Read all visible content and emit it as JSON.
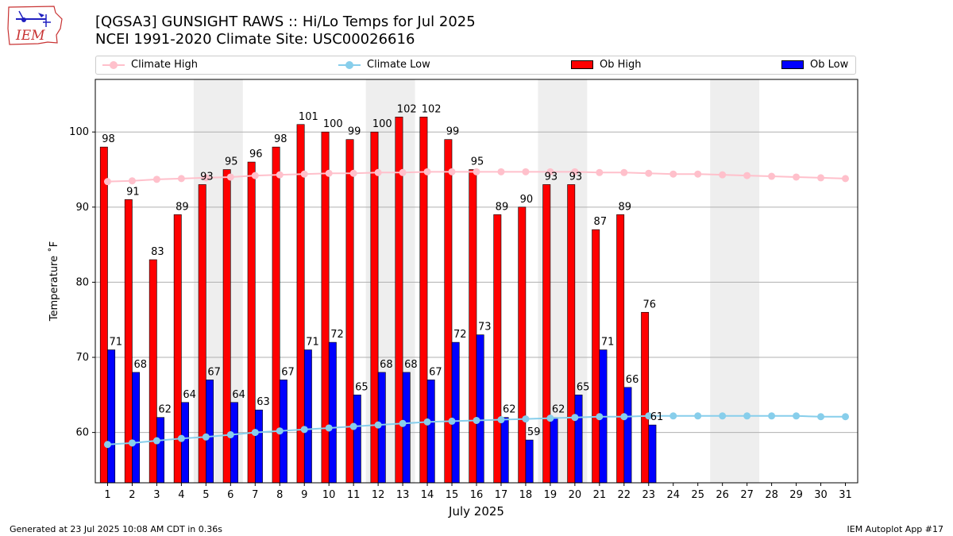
{
  "header": {
    "logo_text": "IEM",
    "title_line1": "[QGSA3] GUNSIGHT RAWS :: Hi/Lo Temps for Jul 2025",
    "title_line2": "NCEI 1991-2020 Climate Site: USC00026616"
  },
  "legend": {
    "items": [
      "Climate High",
      "Climate Low",
      "Ob High",
      "Ob Low"
    ]
  },
  "footer": {
    "left": "Generated at 23 Jul 2025 10:08 AM CDT in 0.36s",
    "right": "IEM Autoplot App #17"
  },
  "colors": {
    "ob_high": "#ff0000",
    "ob_low": "#0000ff",
    "climate_high": "#ffc0cb",
    "climate_low": "#87ceeb",
    "weekend_shade": "#eeeeee",
    "grid": "#b0b0b0"
  },
  "chart_data": {
    "type": "bar",
    "xlabel": "July 2025",
    "ylabel": "Temperature ˚F",
    "ylim": [
      53.3,
      107
    ],
    "yticks": [
      60,
      70,
      80,
      90,
      100
    ],
    "grid": "horizontal",
    "legend_position": "top",
    "categories": [
      "1",
      "2",
      "3",
      "4",
      "5",
      "6",
      "7",
      "8",
      "9",
      "10",
      "11",
      "12",
      "13",
      "14",
      "15",
      "16",
      "17",
      "18",
      "19",
      "20",
      "21",
      "22",
      "23",
      "24",
      "25",
      "26",
      "27",
      "28",
      "29",
      "30",
      "31"
    ],
    "shaded_days": [
      [
        5,
        6
      ],
      [
        12,
        13
      ],
      [
        19,
        20
      ],
      [
        26,
        27
      ]
    ],
    "series": [
      {
        "name": "Ob High",
        "kind": "bar",
        "values": [
          98,
          91,
          83,
          89,
          93,
          95,
          96,
          98,
          101,
          100,
          99,
          100,
          102,
          102,
          99,
          95,
          89,
          90,
          93,
          93,
          87,
          89,
          76,
          null,
          null,
          null,
          null,
          null,
          null,
          null,
          null
        ]
      },
      {
        "name": "Ob Low",
        "kind": "bar",
        "values": [
          71,
          68,
          62,
          64,
          67,
          64,
          63,
          67,
          71,
          72,
          65,
          68,
          68,
          67,
          72,
          73,
          62,
          59,
          62,
          65,
          71,
          66,
          61,
          null,
          null,
          null,
          null,
          null,
          null,
          null,
          null
        ]
      },
      {
        "name": "Climate High",
        "kind": "line",
        "values": [
          93.4,
          93.5,
          93.7,
          93.8,
          93.9,
          94.0,
          94.2,
          94.3,
          94.4,
          94.5,
          94.5,
          94.6,
          94.6,
          94.7,
          94.7,
          94.7,
          94.7,
          94.7,
          94.7,
          94.7,
          94.6,
          94.6,
          94.5,
          94.4,
          94.4,
          94.3,
          94.2,
          94.1,
          94.0,
          93.9,
          93.8
        ]
      },
      {
        "name": "Climate Low",
        "kind": "line",
        "values": [
          58.4,
          58.6,
          58.9,
          59.2,
          59.4,
          59.7,
          60.0,
          60.2,
          60.4,
          60.6,
          60.8,
          61.0,
          61.2,
          61.4,
          61.5,
          61.6,
          61.7,
          61.8,
          61.9,
          62.0,
          62.1,
          62.1,
          62.2,
          62.2,
          62.2,
          62.2,
          62.2,
          62.2,
          62.2,
          62.1,
          62.1
        ]
      }
    ]
  }
}
